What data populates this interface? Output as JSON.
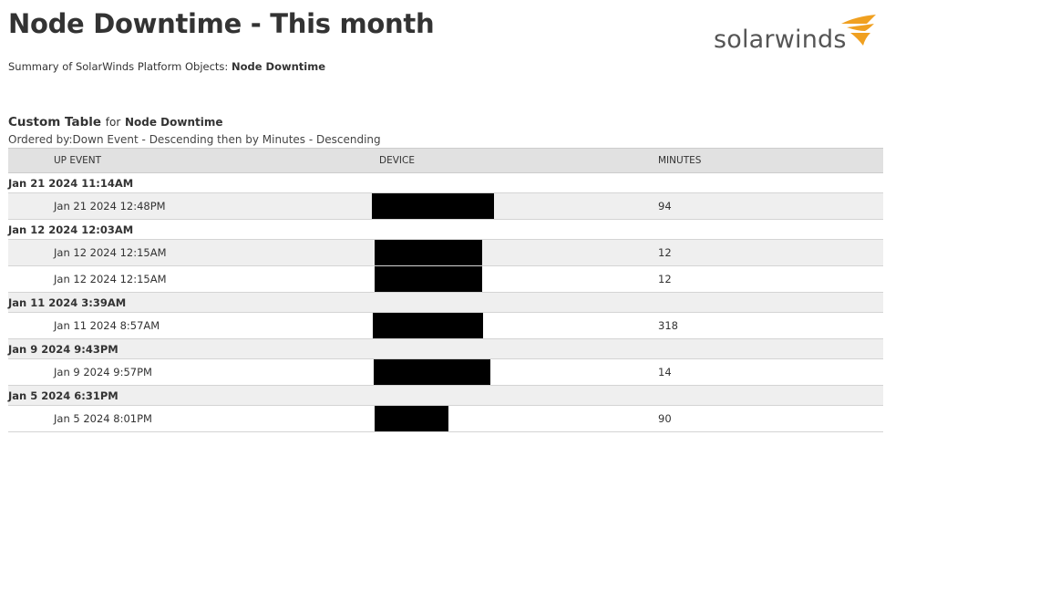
{
  "title": "Node Downtime - This month",
  "summary": {
    "prefix": "Summary of SolarWinds Platform Objects:",
    "object": "Node Downtime"
  },
  "logo": {
    "text": "solarwinds",
    "accent": "#f0a020"
  },
  "table_header": {
    "title": "Custom Table",
    "for": "for",
    "subject": "Node Downtime",
    "ordered_by": "Ordered by:Down Event - Descending then by Minutes - Descending"
  },
  "columns": [
    "UP EVENT",
    "DEVICE",
    "MINUTES"
  ],
  "rows": [
    {
      "type": "group",
      "label": "Jan 21 2024 11:14AM"
    },
    {
      "type": "detail",
      "up_event": "Jan 21 2024 12:48PM",
      "device": "[redacted]",
      "minutes": "94"
    },
    {
      "type": "group",
      "label": "Jan 12 2024 12:03AM"
    },
    {
      "type": "detail",
      "up_event": "Jan 12 2024 12:15AM",
      "device": "[redacted]",
      "minutes": "12"
    },
    {
      "type": "detail",
      "up_event": "Jan 12 2024 12:15AM",
      "device": "[redacted]",
      "minutes": "12"
    },
    {
      "type": "group",
      "label": "Jan 11 2024 3:39AM"
    },
    {
      "type": "detail",
      "up_event": "Jan 11 2024 8:57AM",
      "device": "[redacted]",
      "minutes": "318"
    },
    {
      "type": "group",
      "label": "Jan 9 2024 9:43PM"
    },
    {
      "type": "detail",
      "up_event": "Jan 9 2024 9:57PM",
      "device": "[redacted]",
      "minutes": "14"
    },
    {
      "type": "group",
      "label": "Jan 5 2024 6:31PM"
    },
    {
      "type": "detail",
      "up_event": "Jan 5 2024 8:01PM",
      "device": "[redacted]",
      "minutes": "90"
    }
  ]
}
